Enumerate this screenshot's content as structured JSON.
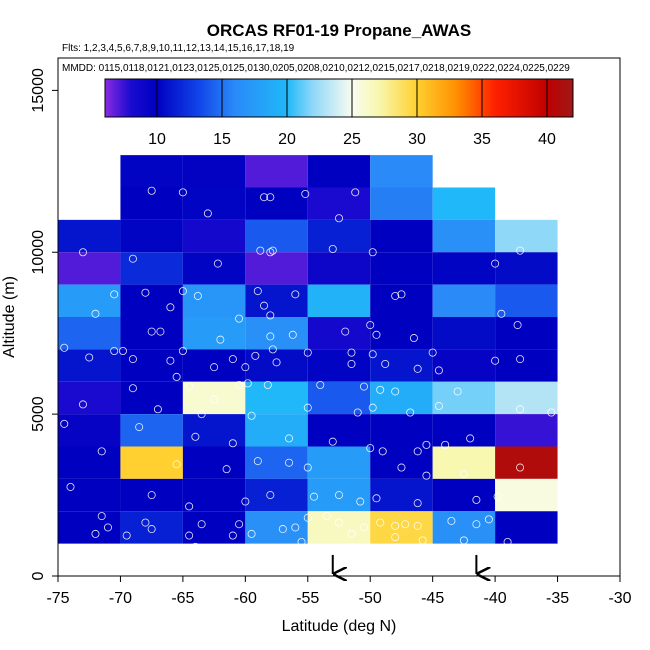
{
  "chart_data": {
    "type": "heatmap",
    "title": "ORCAS RF01-19 Propane_AWAS",
    "flights_note": "Flts: 1,2,3,4,5,6,7,8,9,10,11,12,13,14,15,16,17,18,19",
    "dates_note": "MMDD: 0115,0118,0121,0123,0125,0125,0130,0205,0208,0210,0212,0215,0217,0218,0219,0222,0224,0225,0229",
    "xlabel": "Latitude (deg N)",
    "ylabel": "Altitude (m)",
    "xlim": [
      -75,
      -30
    ],
    "ylim": [
      0,
      16000
    ],
    "x_ticks": [
      "-75",
      "-70",
      "-65",
      "-60",
      "-55",
      "-50",
      "-45",
      "-40",
      "-35",
      "-30"
    ],
    "x_tick_values": [
      -75,
      -70,
      -65,
      -60,
      -55,
      -50,
      -45,
      -40,
      -35,
      -30
    ],
    "y_ticks": [
      "0",
      "5000",
      "10000",
      "15000"
    ],
    "y_tick_values": [
      0,
      5000,
      10000,
      15000
    ],
    "colorbar": {
      "min": 6,
      "max": 42,
      "ticks": [
        "10",
        "15",
        "20",
        "25",
        "30",
        "35",
        "40"
      ],
      "tick_values": [
        10,
        15,
        20,
        25,
        30,
        35,
        40
      ],
      "stops": [
        {
          "v": 6,
          "color": "#8a2be2"
        },
        {
          "v": 8,
          "color": "#1a0ad0"
        },
        {
          "v": 10,
          "color": "#0000c0"
        },
        {
          "v": 13,
          "color": "#1040e8"
        },
        {
          "v": 16,
          "color": "#2a8af8"
        },
        {
          "v": 20,
          "color": "#20b8f8"
        },
        {
          "v": 22,
          "color": "#90d8f8"
        },
        {
          "v": 25,
          "color": "#f8fcf0"
        },
        {
          "v": 27,
          "color": "#f8f8b0"
        },
        {
          "v": 30,
          "color": "#ffd030"
        },
        {
          "v": 33,
          "color": "#ff9000"
        },
        {
          "v": 36,
          "color": "#ff2000"
        },
        {
          "v": 40,
          "color": "#c00000"
        },
        {
          "v": 42,
          "color": "#a01818"
        }
      ]
    },
    "cell_size": {
      "lat_deg": 5,
      "alt_m": 1000
    },
    "cells": [
      {
        "lat": -70,
        "alt": 12000,
        "v": 10.2
      },
      {
        "lat": -65,
        "alt": 12000,
        "v": 9.8
      },
      {
        "lat": -60,
        "alt": 12000,
        "v": 7.0
      },
      {
        "lat": -55,
        "alt": 12000,
        "v": 10.0
      },
      {
        "lat": -50,
        "alt": 12000,
        "v": 16.0
      },
      {
        "lat": -70,
        "alt": 11000,
        "v": 10.0
      },
      {
        "lat": -65,
        "alt": 11000,
        "v": 10.2
      },
      {
        "lat": -60,
        "alt": 11000,
        "v": 10.0
      },
      {
        "lat": -55,
        "alt": 11000,
        "v": 8.0
      },
      {
        "lat": -50,
        "alt": 11000,
        "v": 15.5
      },
      {
        "lat": -45,
        "alt": 11000,
        "v": 20.0
      },
      {
        "lat": -75,
        "alt": 10000,
        "v": 11.0
      },
      {
        "lat": -70,
        "alt": 10000,
        "v": 10.2
      },
      {
        "lat": -65,
        "alt": 10000,
        "v": 8.5
      },
      {
        "lat": -60,
        "alt": 10000,
        "v": 14.0
      },
      {
        "lat": -55,
        "alt": 10000,
        "v": 11.5
      },
      {
        "lat": -50,
        "alt": 10000,
        "v": 10.0
      },
      {
        "lat": -45,
        "alt": 10000,
        "v": 16.5
      },
      {
        "lat": -40,
        "alt": 10000,
        "v": 22.0
      },
      {
        "lat": -75,
        "alt": 9000,
        "v": 7.0
      },
      {
        "lat": -70,
        "alt": 9000,
        "v": 12.0
      },
      {
        "lat": -65,
        "alt": 9000,
        "v": 10.2
      },
      {
        "lat": -60,
        "alt": 9000,
        "v": 7.0
      },
      {
        "lat": -55,
        "alt": 9000,
        "v": 9.0
      },
      {
        "lat": -50,
        "alt": 9000,
        "v": 10.0
      },
      {
        "lat": -45,
        "alt": 9000,
        "v": 10.2
      },
      {
        "lat": -40,
        "alt": 9000,
        "v": 10.5
      },
      {
        "lat": -75,
        "alt": 8000,
        "v": 17.5
      },
      {
        "lat": -70,
        "alt": 8000,
        "v": 10.0
      },
      {
        "lat": -65,
        "alt": 8000,
        "v": 17.0
      },
      {
        "lat": -60,
        "alt": 8000,
        "v": 11.0
      },
      {
        "lat": -55,
        "alt": 8000,
        "v": 19.5
      },
      {
        "lat": -50,
        "alt": 8000,
        "v": 10.0
      },
      {
        "lat": -45,
        "alt": 8000,
        "v": 16.0
      },
      {
        "lat": -40,
        "alt": 8000,
        "v": 14.0
      },
      {
        "lat": -75,
        "alt": 7000,
        "v": 14.5
      },
      {
        "lat": -70,
        "alt": 7000,
        "v": 10.0
      },
      {
        "lat": -65,
        "alt": 7000,
        "v": 17.5
      },
      {
        "lat": -60,
        "alt": 7000,
        "v": 16.5
      },
      {
        "lat": -55,
        "alt": 7000,
        "v": 8.5
      },
      {
        "lat": -50,
        "alt": 7000,
        "v": 10.0
      },
      {
        "lat": -45,
        "alt": 7000,
        "v": 10.5
      },
      {
        "lat": -40,
        "alt": 7000,
        "v": 10.0
      },
      {
        "lat": -75,
        "alt": 6000,
        "v": 11.0
      },
      {
        "lat": -70,
        "alt": 6000,
        "v": 10.0
      },
      {
        "lat": -65,
        "alt": 6000,
        "v": 10.0
      },
      {
        "lat": -60,
        "alt": 6000,
        "v": 10.5
      },
      {
        "lat": -55,
        "alt": 6000,
        "v": 10.2
      },
      {
        "lat": -50,
        "alt": 6000,
        "v": 11.0
      },
      {
        "lat": -45,
        "alt": 6000,
        "v": 9.5
      },
      {
        "lat": -40,
        "alt": 6000,
        "v": 10.0
      },
      {
        "lat": -75,
        "alt": 5000,
        "v": 8.0
      },
      {
        "lat": -70,
        "alt": 5000,
        "v": 10.0
      },
      {
        "lat": -65,
        "alt": 5000,
        "v": 26.0
      },
      {
        "lat": -60,
        "alt": 5000,
        "v": 20.0
      },
      {
        "lat": -55,
        "alt": 5000,
        "v": 14.0
      },
      {
        "lat": -50,
        "alt": 5000,
        "v": 19.0
      },
      {
        "lat": -45,
        "alt": 5000,
        "v": 21.5
      },
      {
        "lat": -40,
        "alt": 5000,
        "v": 23.0
      },
      {
        "lat": -75,
        "alt": 4000,
        "v": 9.5
      },
      {
        "lat": -70,
        "alt": 4000,
        "v": 14.5
      },
      {
        "lat": -65,
        "alt": 4000,
        "v": 11.0
      },
      {
        "lat": -60,
        "alt": 4000,
        "v": 19.0
      },
      {
        "lat": -55,
        "alt": 4000,
        "v": 10.0
      },
      {
        "lat": -50,
        "alt": 4000,
        "v": 10.0
      },
      {
        "lat": -45,
        "alt": 4000,
        "v": 10.0
      },
      {
        "lat": -40,
        "alt": 4000,
        "v": 7.5
      },
      {
        "lat": -75,
        "alt": 3000,
        "v": 10.0
      },
      {
        "lat": -70,
        "alt": 3000,
        "v": 30.0
      },
      {
        "lat": -65,
        "alt": 3000,
        "v": 10.0
      },
      {
        "lat": -60,
        "alt": 3000,
        "v": 14.5
      },
      {
        "lat": -55,
        "alt": 3000,
        "v": 17.5
      },
      {
        "lat": -50,
        "alt": 3000,
        "v": 10.0
      },
      {
        "lat": -45,
        "alt": 3000,
        "v": 27.0
      },
      {
        "lat": -40,
        "alt": 3000,
        "v": 41.0
      },
      {
        "lat": -75,
        "alt": 2000,
        "v": 10.0
      },
      {
        "lat": -70,
        "alt": 2000,
        "v": 10.0
      },
      {
        "lat": -65,
        "alt": 2000,
        "v": 10.0
      },
      {
        "lat": -60,
        "alt": 2000,
        "v": 11.5
      },
      {
        "lat": -55,
        "alt": 2000,
        "v": 17.5
      },
      {
        "lat": -50,
        "alt": 2000,
        "v": 11.0
      },
      {
        "lat": -45,
        "alt": 2000,
        "v": 10.0
      },
      {
        "lat": -40,
        "alt": 2000,
        "v": 25.5
      },
      {
        "lat": -75,
        "alt": 1000,
        "v": 10.0
      },
      {
        "lat": -70,
        "alt": 1000,
        "v": 11.5
      },
      {
        "lat": -65,
        "alt": 1000,
        "v": 10.0
      },
      {
        "lat": -60,
        "alt": 1000,
        "v": 16.5
      },
      {
        "lat": -55,
        "alt": 1000,
        "v": 26.5
      },
      {
        "lat": -50,
        "alt": 1000,
        "v": 29.5
      },
      {
        "lat": -45,
        "alt": 1000,
        "v": 16.5
      },
      {
        "lat": -40,
        "alt": 1000,
        "v": 10.0
      }
    ],
    "samples": [
      [
        -73.5,
        11750
      ],
      [
        -67.5,
        11900
      ],
      [
        -65.0,
        11850
      ],
      [
        -63.0,
        11200
      ],
      [
        -58.5,
        11700
      ],
      [
        -58.0,
        11700
      ],
      [
        -55.2,
        11800
      ],
      [
        -52.5,
        11050
      ],
      [
        -51.2,
        11850
      ],
      [
        -73.0,
        10000
      ],
      [
        -69.0,
        9800
      ],
      [
        -62.2,
        9650
      ],
      [
        -58.8,
        10050
      ],
      [
        -58.0,
        10000
      ],
      [
        -57.8,
        10050
      ],
      [
        -53.0,
        10100
      ],
      [
        -49.8,
        10000
      ],
      [
        -40.0,
        9650
      ],
      [
        -38.0,
        10050
      ],
      [
        -70.5,
        8700
      ],
      [
        -68.0,
        8750
      ],
      [
        -65.0,
        8800
      ],
      [
        -66.0,
        8300
      ],
      [
        -63.8,
        8650
      ],
      [
        -59.0,
        8800
      ],
      [
        -58.5,
        8350
      ],
      [
        -56.0,
        8700
      ],
      [
        -48.0,
        8650
      ],
      [
        -47.5,
        8700
      ],
      [
        -72.0,
        8100
      ],
      [
        -60.5,
        7950
      ],
      [
        -58.0,
        8050
      ],
      [
        -50.0,
        7750
      ],
      [
        -39.5,
        8100
      ],
      [
        -38.2,
        7750
      ],
      [
        -67.5,
        7550
      ],
      [
        -66.8,
        7550
      ],
      [
        -62.0,
        7300
      ],
      [
        -58.0,
        7400
      ],
      [
        -56.2,
        7450
      ],
      [
        -52.0,
        7550
      ],
      [
        -49.5,
        7450
      ],
      [
        -46.5,
        7350
      ],
      [
        -74.5,
        7050
      ],
      [
        -69.8,
        6950
      ],
      [
        -70.5,
        6950
      ],
      [
        -65.0,
        6950
      ],
      [
        -61.0,
        6700
      ],
      [
        -59.2,
        6800
      ],
      [
        -57.8,
        7000
      ],
      [
        -55.0,
        6900
      ],
      [
        -51.5,
        6900
      ],
      [
        -49.8,
        6850
      ],
      [
        -45.0,
        6900
      ],
      [
        -72.5,
        6750
      ],
      [
        -69.0,
        6700
      ],
      [
        -66.0,
        6650
      ],
      [
        -62.5,
        6450
      ],
      [
        -60.0,
        6450
      ],
      [
        -57.5,
        6600
      ],
      [
        -51.5,
        6550
      ],
      [
        -48.8,
        6550
      ],
      [
        -46.2,
        6400
      ],
      [
        -44.5,
        6350
      ],
      [
        -40.0,
        6650
      ],
      [
        -38.0,
        6700
      ],
      [
        -69.0,
        5800
      ],
      [
        -65.5,
        6150
      ],
      [
        -64.5,
        5850
      ],
      [
        -62.5,
        5450
      ],
      [
        -60.5,
        5900
      ],
      [
        -59.8,
        5950
      ],
      [
        -58.2,
        5900
      ],
      [
        -54.0,
        5900
      ],
      [
        -50.5,
        5850
      ],
      [
        -49.2,
        5750
      ],
      [
        -48.0,
        5700
      ],
      [
        -43.0,
        5700
      ],
      [
        -73.0,
        5300
      ],
      [
        -67.0,
        5150
      ],
      [
        -63.5,
        5000
      ],
      [
        -59.5,
        4950
      ],
      [
        -55.0,
        5200
      ],
      [
        -51.0,
        5050
      ],
      [
        -49.8,
        5200
      ],
      [
        -46.8,
        5050
      ],
      [
        -44.5,
        5250
      ],
      [
        -38.0,
        5150
      ],
      [
        -35.5,
        5050
      ],
      [
        -74.5,
        4700
      ],
      [
        -68.5,
        4600
      ],
      [
        -64.0,
        4300
      ],
      [
        -61.0,
        4100
      ],
      [
        -56.5,
        4250
      ],
      [
        -53.0,
        4150
      ],
      [
        -50.0,
        3950
      ],
      [
        -49.0,
        3850
      ],
      [
        -46.2,
        3850
      ],
      [
        -45.5,
        4050
      ],
      [
        -44.0,
        4050
      ],
      [
        -42.0,
        4250
      ],
      [
        -71.5,
        3850
      ],
      [
        -65.5,
        3450
      ],
      [
        -61.5,
        3300
      ],
      [
        -59.0,
        3550
      ],
      [
        -56.5,
        3500
      ],
      [
        -55.0,
        3350
      ],
      [
        -47.5,
        3350
      ],
      [
        -45.5,
        3100
      ],
      [
        -42.5,
        3150
      ],
      [
        -38.0,
        3350
      ],
      [
        -74.0,
        2750
      ],
      [
        -67.5,
        2500
      ],
      [
        -64.5,
        2150
      ],
      [
        -60.0,
        2300
      ],
      [
        -58.0,
        2500
      ],
      [
        -54.5,
        2450
      ],
      [
        -52.5,
        2500
      ],
      [
        -50.8,
        2300
      ],
      [
        -49.5,
        2400
      ],
      [
        -46.2,
        2250
      ],
      [
        -41.5,
        2350
      ],
      [
        -39.8,
        2450
      ],
      [
        -71.5,
        1850
      ],
      [
        -71.0,
        1500
      ],
      [
        -68.0,
        1650
      ],
      [
        -67.5,
        1450
      ],
      [
        -64.5,
        1250
      ],
      [
        -63.5,
        1600
      ],
      [
        -60.5,
        1600
      ],
      [
        -59.5,
        1300
      ],
      [
        -56.0,
        1500
      ],
      [
        -55.0,
        1800
      ],
      [
        -53.5,
        1850
      ],
      [
        -52.5,
        1650
      ],
      [
        -50.5,
        1500
      ],
      [
        -49.2,
        1650
      ],
      [
        -48.0,
        1550
      ],
      [
        -47.2,
        1600
      ],
      [
        -46.2,
        1550
      ],
      [
        -43.5,
        1700
      ],
      [
        -41.5,
        1600
      ],
      [
        -40.5,
        1750
      ],
      [
        -72.0,
        1300
      ],
      [
        -69.5,
        1250
      ],
      [
        -64.0,
        900
      ],
      [
        -61.0,
        1250
      ],
      [
        -57.0,
        1450
      ],
      [
        -55.5,
        1050
      ],
      [
        -51.5,
        1300
      ],
      [
        -48.0,
        1200
      ],
      [
        -45.8,
        1100
      ],
      [
        -42.5,
        1100
      ],
      [
        -39.0,
        1050
      ],
      [
        -63.0,
        700
      ],
      [
        -58.5,
        650
      ],
      [
        -55.0,
        600
      ],
      [
        -50.0,
        750
      ],
      [
        -47.5,
        600
      ],
      [
        -45.2,
        400
      ],
      [
        -43.0,
        500
      ],
      [
        -39.5,
        700
      ],
      [
        -75.0,
        150
      ],
      [
        -71.0,
        150
      ],
      [
        -70.8,
        150
      ],
      [
        -69.5,
        150
      ],
      [
        -68.0,
        150
      ],
      [
        -67.0,
        250
      ],
      [
        -66.0,
        150
      ],
      [
        -64.8,
        150
      ],
      [
        -63.5,
        150
      ],
      [
        -62.0,
        150
      ],
      [
        -61.2,
        150
      ],
      [
        -60.2,
        200
      ],
      [
        -59.0,
        150
      ],
      [
        -58.0,
        150
      ],
      [
        -57.2,
        150
      ],
      [
        -56.0,
        150
      ],
      [
        -55.0,
        150
      ],
      [
        -52.2,
        150
      ],
      [
        -51.0,
        150
      ],
      [
        -50.2,
        150
      ],
      [
        -49.5,
        150
      ],
      [
        -48.5,
        150
      ],
      [
        -47.8,
        150
      ],
      [
        -47.0,
        150
      ],
      [
        -46.2,
        150
      ],
      [
        -45.5,
        150
      ],
      [
        -43.8,
        200
      ],
      [
        -40.0,
        150
      ],
      [
        -39.0,
        200
      ],
      [
        -36.5,
        250
      ]
    ],
    "arrows_lat": [
      -53,
      -41.5
    ]
  }
}
